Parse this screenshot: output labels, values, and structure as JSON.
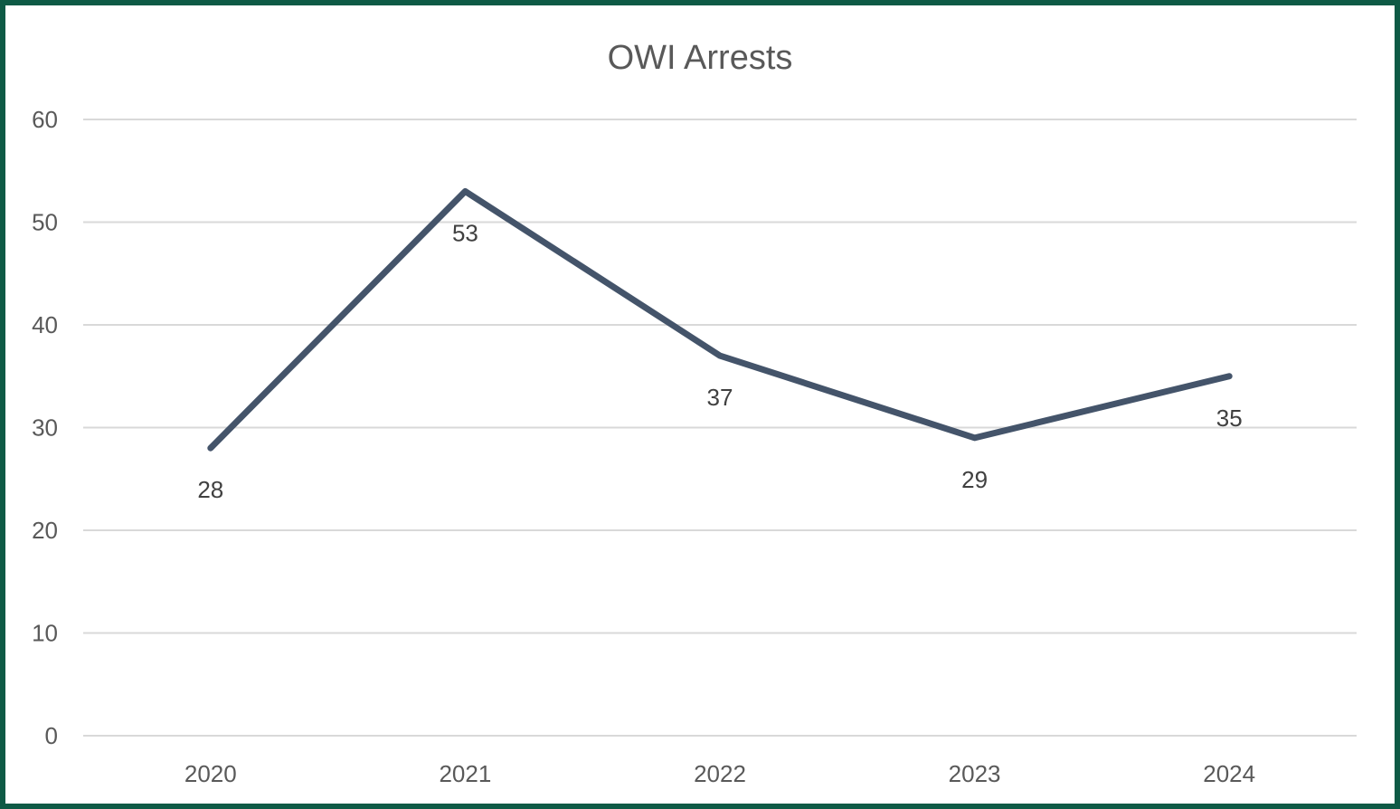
{
  "chart_data": {
    "type": "line",
    "title": "OWI Arrests",
    "xlabel": "",
    "ylabel": "",
    "categories": [
      "2020",
      "2021",
      "2022",
      "2023",
      "2024"
    ],
    "series": [
      {
        "values": [
          28,
          53,
          37,
          29,
          35
        ]
      }
    ],
    "ylim": [
      0,
      60
    ],
    "yticks": [
      0,
      10,
      20,
      30,
      40,
      50,
      60
    ],
    "grid": true,
    "legend": "none",
    "data_labels": true
  },
  "colors": {
    "frame": "#0e5a45",
    "line": "#44546a",
    "gridline": "#d9d9d9",
    "text": "#595959"
  }
}
